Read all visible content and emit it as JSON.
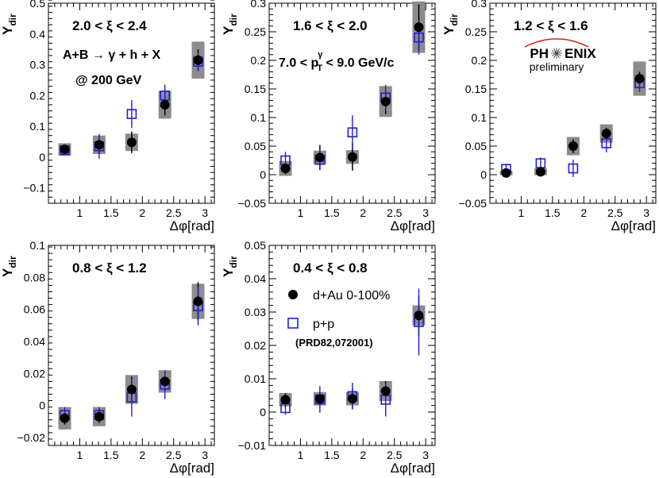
{
  "chart_data": [
    {
      "type": "scatter",
      "title": "2.0 < ξ < 2.4",
      "xlabel": "Δφ[rad]",
      "ylabel": "Y",
      "ylabel_sub": "dir",
      "xlim": [
        0.5,
        3.15
      ],
      "ylim": [
        -0.15,
        0.5
      ],
      "xticks": [
        1,
        1.5,
        2,
        2.5,
        3
      ],
      "xtick_labels": [
        "1",
        "1.5",
        "2",
        "2.5",
        "3"
      ],
      "yticks": [
        -0.1,
        0,
        0.1,
        0.2,
        0.3,
        0.4,
        0.5
      ],
      "ytick_labels": [
        "−0.1",
        "0",
        "0.1",
        "0.2",
        "0.3",
        "0.4",
        "0.5"
      ],
      "annotations": [
        "A+B → γ + h + X",
        "@ 200 GeV"
      ],
      "series": [
        {
          "name": "d+Au 0-100%",
          "marker": "filled-circle",
          "x": [
            0.76,
            1.31,
            1.83,
            2.36,
            2.89
          ],
          "y": [
            0.025,
            0.04,
            0.048,
            0.17,
            0.315
          ],
          "err": [
            0.015,
            0.03,
            0.035,
            0.035,
            0.035
          ],
          "sys": [
            0.02,
            0.03,
            0.028,
            0.045,
            0.06
          ]
        },
        {
          "name": "p+p",
          "marker": "open-square",
          "x": [
            0.76,
            1.31,
            1.83,
            2.36,
            2.89
          ],
          "y": [
            0.022,
            0.035,
            0.14,
            0.2,
            0.31
          ],
          "err": [
            0.015,
            0.04,
            0.045,
            0.035,
            0.03
          ]
        }
      ]
    },
    {
      "type": "scatter",
      "title": "1.6 < ξ < 2.0",
      "xlabel": "Δφ[rad]",
      "ylabel": "Y",
      "ylabel_sub": "dir",
      "xlim": [
        0.5,
        3.15
      ],
      "ylim": [
        -0.05,
        0.3
      ],
      "xticks": [
        1,
        1.5,
        2,
        2.5,
        3
      ],
      "xtick_labels": [
        "1",
        "1.5",
        "2",
        "2.5",
        "3"
      ],
      "yticks": [
        -0.05,
        0,
        0.05,
        0.1,
        0.15,
        0.2,
        0.25,
        0.3
      ],
      "ytick_labels": [
        "−0.05",
        "0",
        "0.05",
        "0.1",
        "0.15",
        "0.2",
        "0.25",
        "0.3"
      ],
      "annotation_parts": {
        "prefix": "7.0 < p",
        "sub": "T",
        "sup": "γ",
        "suffix": " < 9.0 GeV/c"
      },
      "series": [
        {
          "name": "d+Au 0-100%",
          "marker": "filled-circle",
          "x": [
            0.76,
            1.31,
            1.83,
            2.36,
            2.89
          ],
          "y": [
            0.011,
            0.03,
            0.031,
            0.128,
            0.258
          ],
          "err": [
            0.01,
            0.022,
            0.024,
            0.022,
            0.04
          ],
          "sys": [
            0.013,
            0.012,
            0.012,
            0.027,
            0.045
          ]
        },
        {
          "name": "p+p",
          "marker": "open-square",
          "x": [
            0.76,
            1.31,
            1.83,
            2.36,
            2.89
          ],
          "y": [
            0.025,
            0.026,
            0.074,
            0.135,
            0.24
          ],
          "err": [
            0.015,
            0.018,
            0.03,
            0.022,
            0.03
          ]
        }
      ]
    },
    {
      "type": "scatter",
      "title": "1.2 < ξ < 1.6",
      "xlabel": "Δφ[rad]",
      "ylabel": "Y",
      "ylabel_sub": "dir",
      "xlim": [
        0.5,
        3.15
      ],
      "ylim": [
        -0.05,
        0.3
      ],
      "xticks": [
        1,
        1.5,
        2,
        2.5,
        3
      ],
      "xtick_labels": [
        "1",
        "1.5",
        "2",
        "2.5",
        "3"
      ],
      "yticks": [
        -0.05,
        0,
        0.05,
        0.1,
        0.15,
        0.2,
        0.25,
        0.3
      ],
      "ytick_labels": [
        "−0.05",
        "0",
        "0.05",
        "0.1",
        "0.15",
        "0.2",
        "0.25",
        "0.3"
      ],
      "logo": {
        "name_left": "PH",
        "name_right": "ENIX",
        "subtitle": "preliminary"
      },
      "series": [
        {
          "name": "d+Au 0-100%",
          "marker": "filled-circle",
          "x": [
            0.76,
            1.31,
            1.83,
            2.36,
            2.89
          ],
          "y": [
            0.003,
            0.005,
            0.05,
            0.072,
            0.168
          ],
          "err": [
            0.006,
            0.008,
            0.012,
            0.01,
            0.012
          ],
          "sys": [
            0.004,
            0.006,
            0.016,
            0.016,
            0.03
          ]
        },
        {
          "name": "p+p",
          "marker": "open-square",
          "x": [
            0.76,
            1.31,
            1.83,
            2.36,
            2.89
          ],
          "y": [
            0.01,
            0.02,
            0.011,
            0.055,
            0.16
          ],
          "err": [
            0.008,
            0.01,
            0.015,
            0.016,
            0.015
          ]
        }
      ]
    },
    {
      "type": "scatter",
      "title": "0.8 < ξ < 1.2",
      "xlabel": "Δφ[rad]",
      "ylabel": "Y",
      "ylabel_sub": "dir",
      "xlim": [
        0.5,
        3.15
      ],
      "ylim": [
        -0.025,
        0.1
      ],
      "xticks": [
        1,
        1.5,
        2,
        2.5,
        3
      ],
      "xtick_labels": [
        "1",
        "1.5",
        "2",
        "2.5",
        "3"
      ],
      "yticks": [
        -0.02,
        0,
        0.02,
        0.04,
        0.06,
        0.08,
        0.1
      ],
      "ytick_labels": [
        "−0.02",
        "0",
        "0.02",
        "0.04",
        "0.06",
        "0.08",
        "0.1"
      ],
      "series": [
        {
          "name": "d+Au 0-100%",
          "marker": "filled-circle",
          "x": [
            0.76,
            1.31,
            1.83,
            2.36,
            2.89
          ],
          "y": [
            -0.008,
            -0.007,
            0.01,
            0.015,
            0.065
          ],
          "err": [
            0.004,
            0.004,
            0.008,
            0.006,
            0.012
          ],
          "sys": [
            0.007,
            0.006,
            0.009,
            0.007,
            0.011
          ]
        },
        {
          "name": "p+p",
          "marker": "open-square",
          "x": [
            0.76,
            1.31,
            1.83,
            2.36,
            2.89
          ],
          "y": [
            -0.006,
            -0.006,
            0.005,
            0.013,
            0.062
          ],
          "err": [
            0.005,
            0.005,
            0.012,
            0.009,
            0.012
          ]
        }
      ]
    },
    {
      "type": "scatter",
      "title": "0.4 < ξ < 0.8",
      "xlabel": "Δφ[rad]",
      "ylabel": "Y",
      "ylabel_sub": "dir",
      "xlim": [
        0.5,
        3.15
      ],
      "ylim": [
        -0.01,
        0.05
      ],
      "xticks": [
        1,
        1.5,
        2,
        2.5,
        3
      ],
      "xtick_labels": [
        "1",
        "1.5",
        "2",
        "2.5",
        "3"
      ],
      "yticks": [
        -0.01,
        0,
        0.01,
        0.02,
        0.03,
        0.04,
        0.05
      ],
      "ytick_labels": [
        "−0.01",
        "0",
        "0.01",
        "0.02",
        "0.03",
        "0.04",
        "0.05"
      ],
      "legend": {
        "entries": [
          {
            "label": "d+Au 0-100%",
            "marker": "filled-circle"
          },
          {
            "label": "p+p",
            "marker": "open-square"
          }
        ],
        "reference": "(PRD82,072001)"
      },
      "series": [
        {
          "name": "d+Au 0-100%",
          "marker": "filled-circle",
          "x": [
            0.76,
            1.31,
            1.83,
            2.36,
            2.89
          ],
          "y": [
            0.0037,
            0.004,
            0.004,
            0.0063,
            0.029
          ],
          "err": [
            0.002,
            0.002,
            0.003,
            0.003,
            0.006
          ],
          "sys": [
            0.002,
            0.002,
            0.002,
            0.003,
            0.003
          ]
        },
        {
          "name": "p+p",
          "marker": "open-square",
          "x": [
            0.76,
            1.31,
            1.83,
            2.36,
            2.89
          ],
          "y": [
            0.0012,
            0.0038,
            0.0048,
            0.0037,
            0.027
          ],
          "err": [
            0.002,
            0.004,
            0.004,
            0.005,
            0.01
          ]
        }
      ]
    }
  ]
}
